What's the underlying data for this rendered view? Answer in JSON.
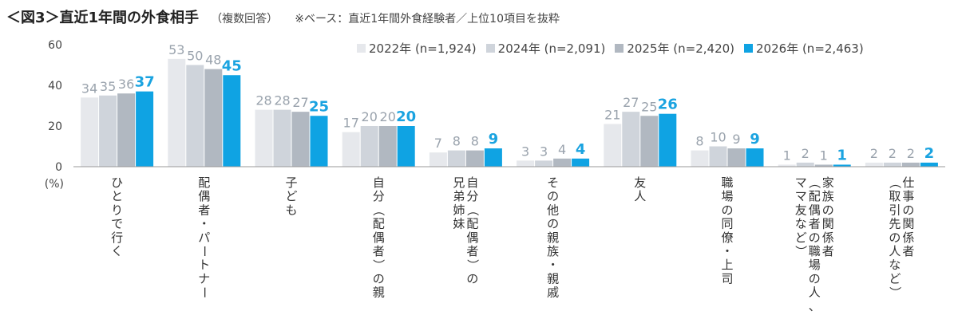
{
  "title": "＜図3＞直近1年間の外食相手",
  "subtitle": "（複数回答）",
  "note": "※ベース：直近1年間外食経験者／上位10項目を抜粋",
  "chart_data": {
    "type": "bar",
    "unit_label": "(%)",
    "ylim": [
      0,
      60
    ],
    "yticks": [
      0,
      20,
      40,
      60
    ],
    "grid": false,
    "legend_position": "top-right",
    "categories": [
      "ひとりで行く",
      "配偶者・パートナー",
      "子ども",
      "自分（配偶者）の親",
      "自分（配偶者）の兄弟姉妹",
      "その他の親族・親戚",
      "友人",
      "職場の同僚・上司",
      "家族の関係者（配偶者の職場の人、ママ友など）",
      "仕事の関係者（取引先の人など）"
    ],
    "category_lines": [
      [
        "ひとりで行く"
      ],
      [
        "配偶者・パートナー"
      ],
      [
        "子ども"
      ],
      [
        "自分（配偶者）の親"
      ],
      [
        "自分（配偶者）の",
        "兄弟姉妹"
      ],
      [
        "その他の親族・親戚"
      ],
      [
        "友人"
      ],
      [
        "職場の同僚・上司"
      ],
      [
        "家族の関係者",
        "（配偶者の職場の人、",
        "ママ友など）"
      ],
      [
        "仕事の関係者",
        "（取引先の人など）"
      ]
    ],
    "series": [
      {
        "name": "2022年 (n=1,924)",
        "color": "#e6e8ec",
        "values": [
          34,
          53,
          28,
          17,
          7,
          3,
          21,
          8,
          1,
          2
        ]
      },
      {
        "name": "2024年 (n=2,091)",
        "color": "#cfd4db",
        "values": [
          35,
          50,
          28,
          20,
          8,
          3,
          27,
          10,
          2,
          2
        ]
      },
      {
        "name": "2025年 (n=2,420)",
        "color": "#b1b8c1",
        "values": [
          36,
          48,
          27,
          20,
          8,
          4,
          25,
          9,
          1,
          2
        ]
      },
      {
        "name": "2026年 (n=2,463)",
        "color": "#0fa3e3",
        "values": [
          37,
          45,
          25,
          20,
          9,
          4,
          26,
          9,
          1,
          2
        ]
      }
    ]
  }
}
